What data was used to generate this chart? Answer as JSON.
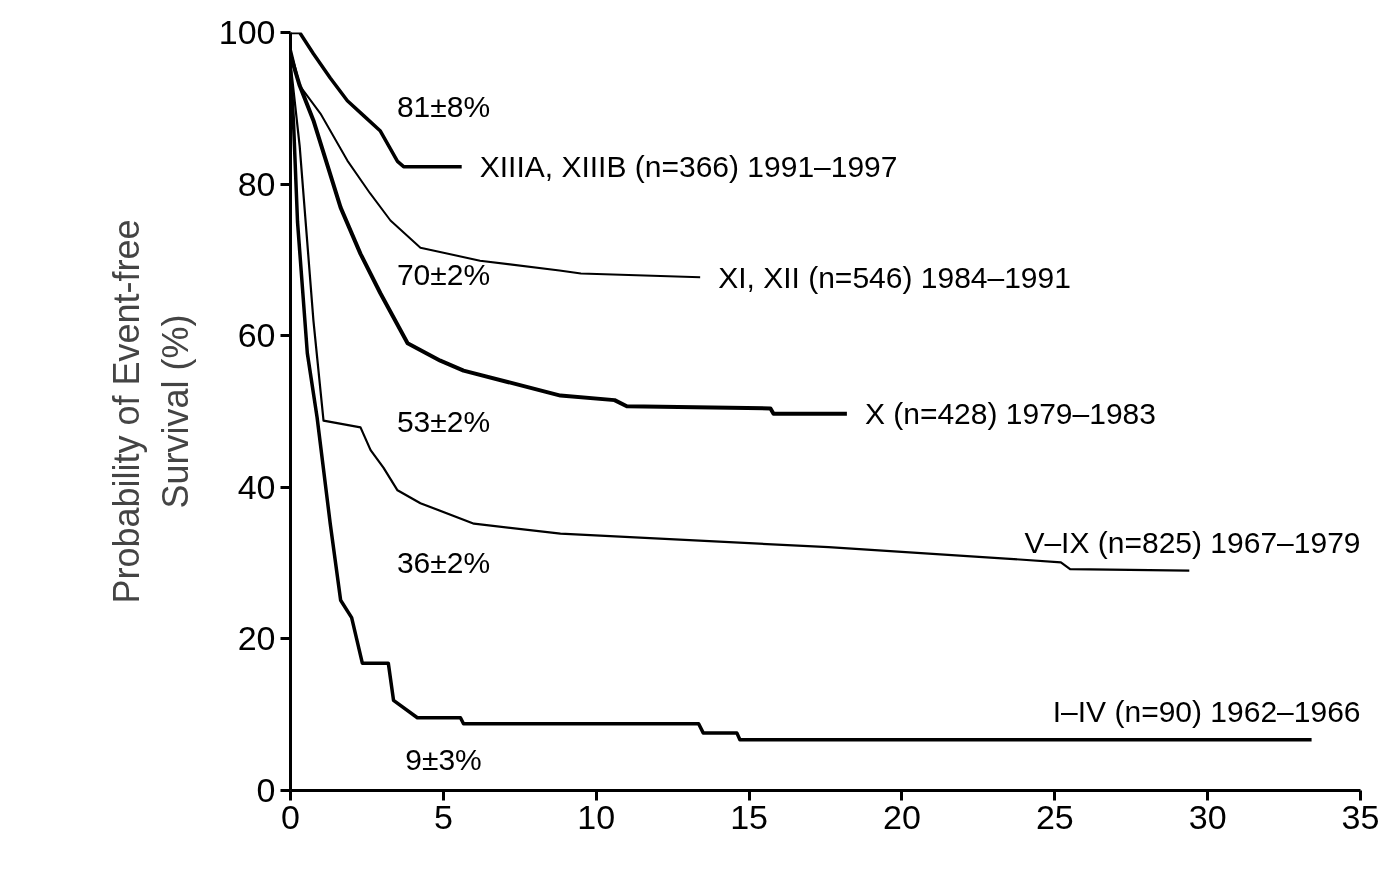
{
  "chart_data": {
    "type": "line",
    "ylabel": "Probability of Event-free\nSurvival (%)",
    "xlim": [
      0,
      35
    ],
    "xticks": [
      0,
      5,
      10,
      15,
      20,
      25,
      30,
      35
    ],
    "ylim": [
      0,
      100
    ],
    "yticks": [
      0,
      20,
      40,
      60,
      80,
      100
    ],
    "grid": false,
    "marker": "none",
    "line_style": "solid",
    "series": [
      {
        "name": "XIIIA, XIIIB (n=366) 1991–1997",
        "color": "#000000",
        "x": [
          0,
          0.3,
          0.75,
          1.3,
          1.86,
          2.4,
          2.94,
          3.5,
          3.7,
          5.6
        ],
        "values": [
          100,
          100,
          97.2,
          94,
          91,
          89,
          87,
          83,
          82.3,
          82.3
        ]
      },
      {
        "name": "XI, XII (n=546) 1984–1991",
        "color": "#000000",
        "x": [
          0,
          0.3,
          0.98,
          1.86,
          2.6,
          3.27,
          4.25,
          6.2,
          8.8,
          9.5,
          13.4
        ],
        "values": [
          98,
          93,
          89.3,
          83.1,
          78.8,
          75.2,
          71.6,
          69.9,
          68.6,
          68.2,
          67.7
        ]
      },
      {
        "name": "X (n=428) 1979–1983",
        "color": "#000000",
        "x": [
          0,
          0.3,
          0.75,
          1.64,
          2.29,
          2.94,
          3.83,
          4.9,
          5.66,
          8.83,
          10.6,
          11.0,
          15.7,
          15.8,
          18.2
        ],
        "values": [
          97,
          93,
          88.4,
          76.9,
          70.8,
          65.6,
          59,
          56.7,
          55.4,
          52.1,
          51.5,
          50.7,
          50.4,
          49.7,
          49.7
        ]
      },
      {
        "name": "V–IX (n=825) 1967–1979",
        "color": "#000000",
        "x": [
          0,
          0.3,
          0.75,
          1.08,
          2.29,
          2.62,
          3.04,
          3.5,
          4.25,
          6.0,
          8.83,
          17.6,
          23.4,
          25.2,
          25.5,
          29.4
        ],
        "values": [
          96,
          85,
          62,
          48.8,
          47.9,
          44.9,
          42.6,
          39.6,
          37.9,
          35.2,
          33.9,
          32.1,
          30.6,
          30.1,
          29.2,
          29.0
        ]
      },
      {
        "name": "I–IV (n=90) 1962–1966",
        "color": "#000000",
        "x": [
          0,
          0.1,
          0.23,
          0.55,
          0.87,
          1.3,
          1.64,
          2.0,
          2.35,
          3.2,
          3.37,
          4.15,
          5.56,
          5.66,
          13.35,
          13.5,
          14.6,
          14.7,
          33.4
        ],
        "values": [
          95,
          88,
          75,
          57.7,
          49.2,
          35.2,
          25.1,
          22.8,
          16.8,
          16.8,
          11.9,
          9.6,
          9.6,
          8.8,
          8.8,
          7.6,
          7.6,
          6.7,
          6.7
        ]
      }
    ],
    "annotations": [
      "81±8%",
      "70±2%",
      "53±2%",
      "36±2%",
      "9±3%"
    ]
  }
}
